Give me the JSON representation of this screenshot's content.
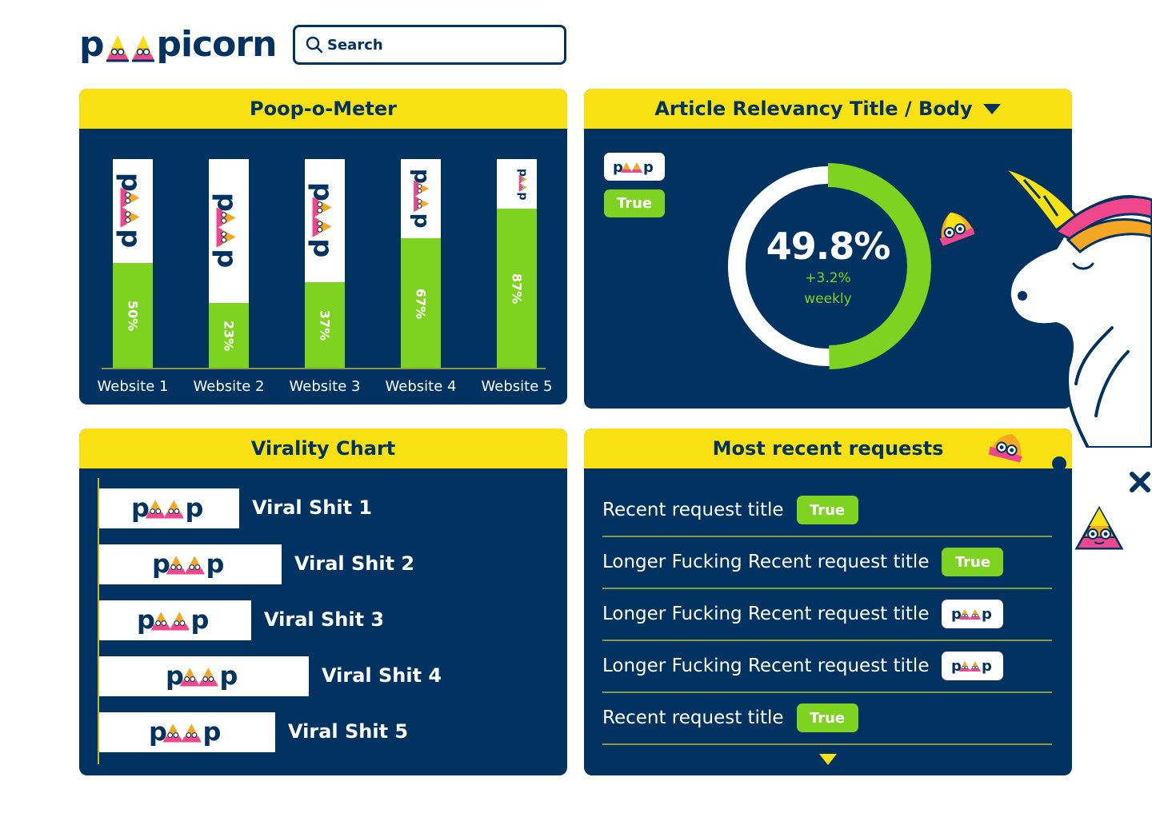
{
  "brand": {
    "logo_left": "p",
    "logo_right": "picorn"
  },
  "search": {
    "placeholder": "Search"
  },
  "poop_meter": {
    "title": "Poop-o-Meter"
  },
  "relevancy": {
    "title": "Article Relevancy Title / Body",
    "badge_true": "True",
    "value_label": "49.8%",
    "value": 49.8,
    "delta": "+3.2%",
    "period": "weekly"
  },
  "virality": {
    "title": "Virality Chart",
    "items": [
      {
        "label": "Viral Shit 1"
      },
      {
        "label": "Viral Shit 2"
      },
      {
        "label": "Viral Shit 3"
      },
      {
        "label": "Viral Shit 4"
      },
      {
        "label": "Viral Shit 5"
      }
    ]
  },
  "requests": {
    "title": "Most recent requests",
    "items": [
      {
        "title": "Recent request title",
        "badge": "True",
        "badge_type": "true"
      },
      {
        "title": "Longer Fucking Recent request title",
        "badge": "True",
        "badge_type": "true"
      },
      {
        "title": "Longer Fucking Recent request title",
        "badge": "",
        "badge_type": "poop"
      },
      {
        "title": "Longer Fucking Recent request title",
        "badge": "",
        "badge_type": "poop"
      },
      {
        "title": "Recent request title",
        "badge": "True",
        "badge_type": "true"
      }
    ]
  },
  "colors": {
    "navy": "#003262",
    "yellow": "#f9e012",
    "green": "#7ed321",
    "pink": "#f0468c",
    "orange": "#f5a623"
  },
  "chart_data": [
    {
      "type": "bar",
      "title": "Poop-o-Meter",
      "categories": [
        "Website 1",
        "Website 2",
        "Website 3",
        "Website 4",
        "Website 5"
      ],
      "values": [
        50,
        23,
        37,
        67,
        87
      ],
      "value_labels": [
        "50%",
        "23%",
        "37%",
        "67%",
        "87%"
      ],
      "ylim": [
        0,
        100
      ],
      "xlabel": "",
      "ylabel": ""
    },
    {
      "type": "bar",
      "title": "Virality Chart",
      "orientation": "horizontal",
      "categories": [
        "Viral Shit 1",
        "Viral Shit 2",
        "Viral Shit 3",
        "Viral Shit 4",
        "Viral Shit 5"
      ],
      "values": [
        46,
        60,
        50,
        69,
        58
      ],
      "xlabel": "",
      "ylabel": ""
    }
  ]
}
